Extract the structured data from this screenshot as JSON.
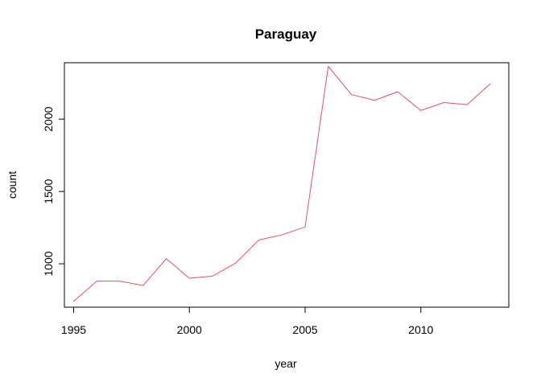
{
  "chart_data": {
    "type": "line",
    "title": "Paraguay",
    "xlabel": "year",
    "ylabel": "count",
    "x": [
      1995,
      1996,
      1997,
      1998,
      1999,
      2000,
      2001,
      2002,
      2003,
      2004,
      2005,
      2006,
      2007,
      2008,
      2009,
      2010,
      2011,
      2012,
      2013
    ],
    "series": [
      {
        "values": [
          740,
          880,
          880,
          850,
          1035,
          900,
          915,
          1005,
          1165,
          1200,
          1255,
          2365,
          2170,
          2130,
          2190,
          2060,
          2115,
          2100,
          2245
        ],
        "color": "#DF536B"
      }
    ],
    "xticks": [
      1995,
      2000,
      2005,
      2010
    ],
    "yticks": [
      1000,
      1500,
      2000
    ],
    "xlim": [
      1994.6,
      2013.8
    ],
    "ylim": [
      700,
      2390
    ],
    "grid": false,
    "legend": "none"
  }
}
